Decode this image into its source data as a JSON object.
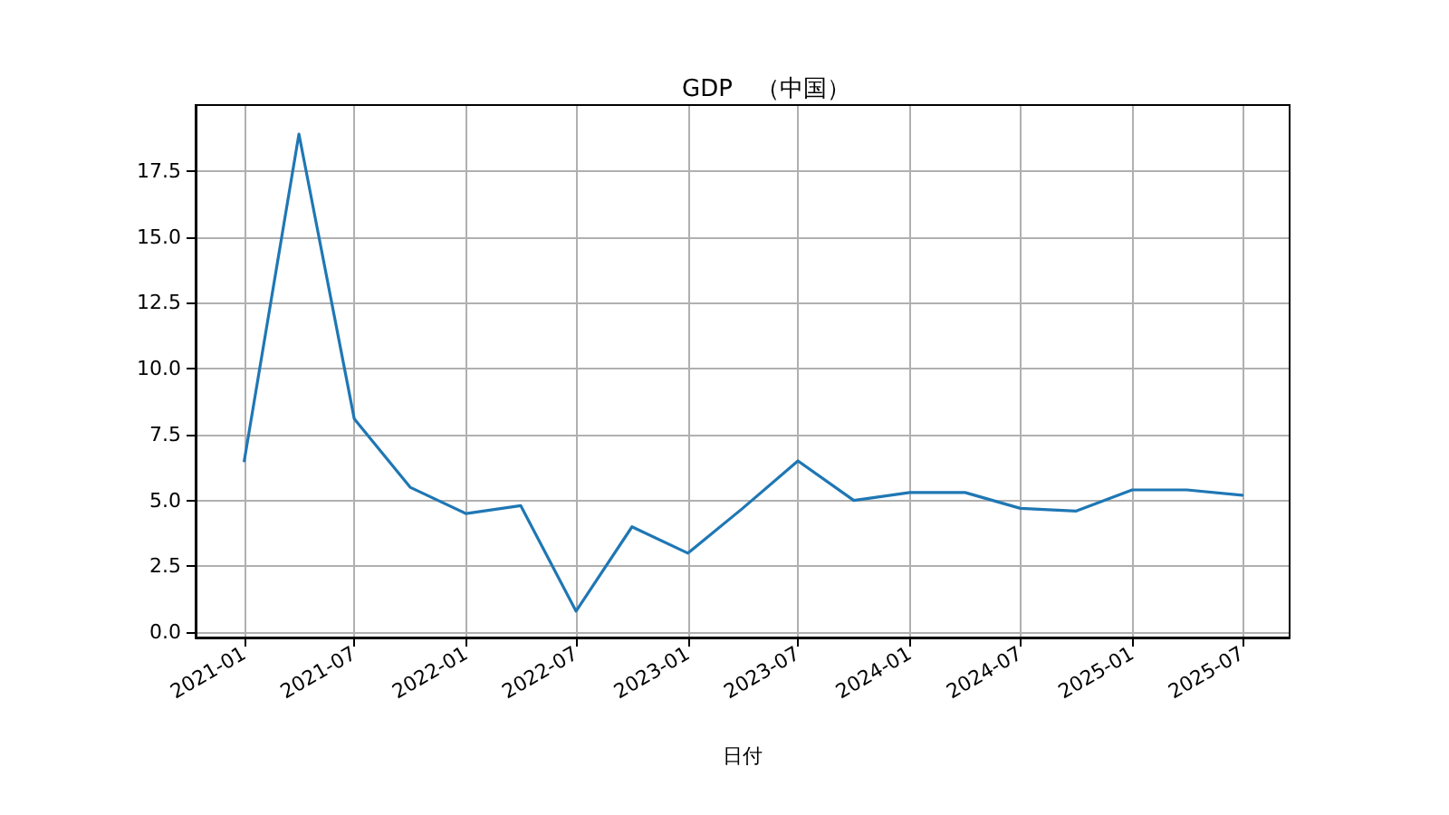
{
  "chart_data": {
    "type": "line",
    "title": "GDP　（中国）",
    "xlabel": "日付",
    "x": [
      "2021-01",
      "2021-04",
      "2021-07",
      "2021-10",
      "2022-01",
      "2022-04",
      "2022-07",
      "2022-10",
      "2023-01",
      "2023-04",
      "2023-07",
      "2023-10",
      "2024-01",
      "2024-04",
      "2024-07",
      "2024-10",
      "2025-01",
      "2025-04",
      "2025-07"
    ],
    "series": [
      {
        "color": "#1f77b4",
        "values": [
          6.5,
          18.9,
          8.1,
          5.5,
          4.5,
          4.8,
          0.8,
          4.0,
          3.0,
          4.7,
          6.5,
          5.0,
          5.3,
          5.3,
          4.7,
          4.6,
          5.4,
          5.4,
          5.2
        ]
      }
    ],
    "xlim": [
      "2020-10-13",
      "2025-09-17"
    ],
    "xticks": [
      "2021-01",
      "2021-07",
      "2022-01",
      "2022-07",
      "2023-01",
      "2023-07",
      "2024-01",
      "2024-07",
      "2025-01",
      "2025-07"
    ],
    "ylim": [
      -0.2,
      20
    ],
    "yticks": [
      {
        "value": 0,
        "label": "0.0"
      },
      2.5,
      {
        "value": 5,
        "label": "5.0"
      },
      7.5,
      {
        "value": 10,
        "label": "10.0"
      },
      12.5,
      {
        "value": 15,
        "label": "15.0"
      },
      17.5
    ],
    "grid": true,
    "marker": "none",
    "line_style": "solid"
  }
}
